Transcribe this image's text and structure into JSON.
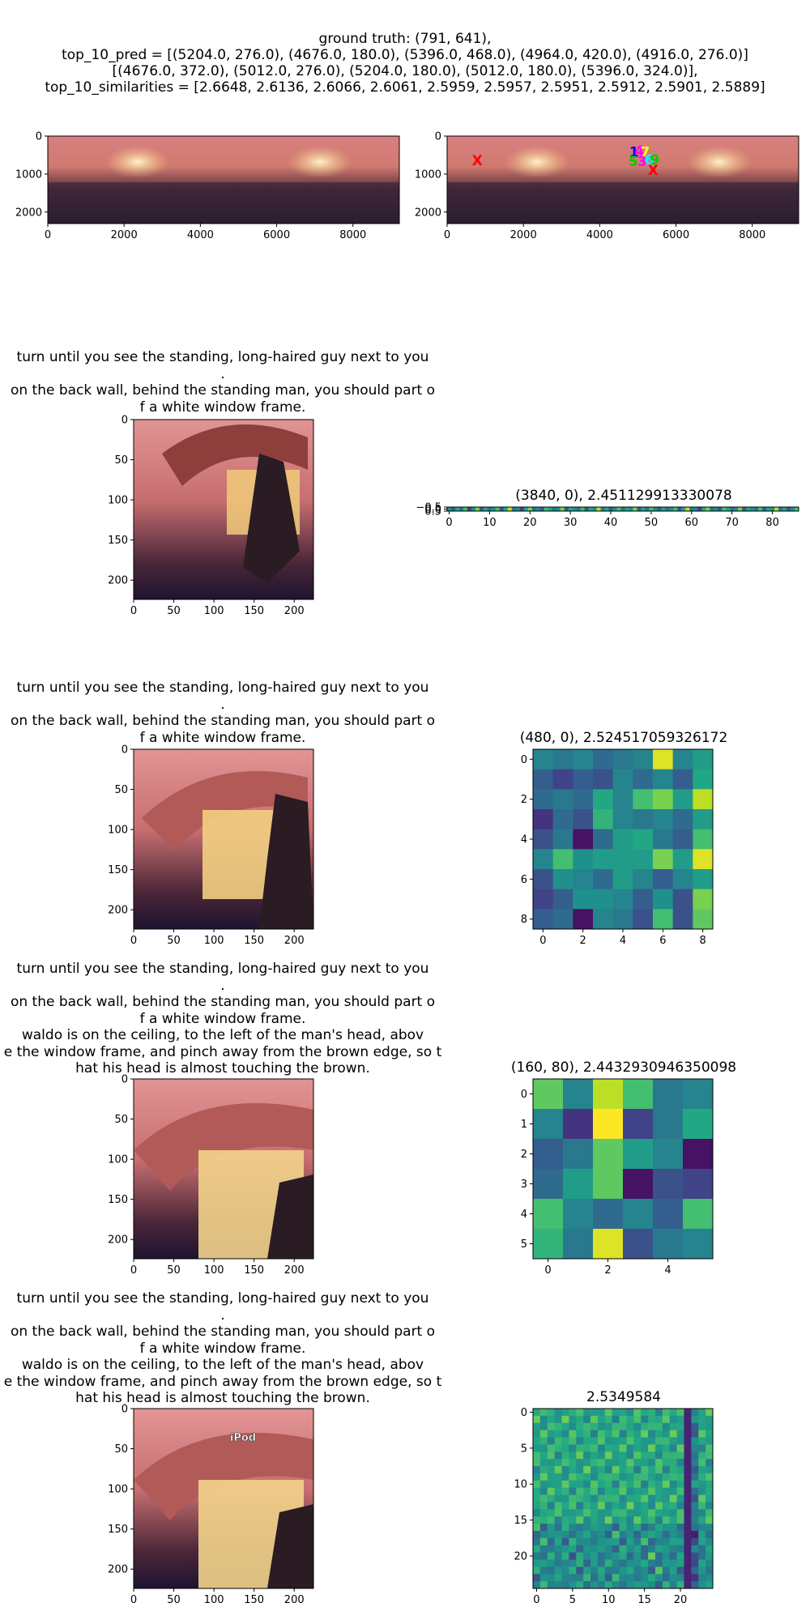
{
  "header": {
    "line1": "ground truth: (791, 641),",
    "line2": "top_10_pred = [(5204.0, 276.0), (4676.0, 180.0), (5396.0, 468.0), (4964.0, 420.0), (4916.0, 276.0)]",
    "line3": "[(4676.0, 372.0), (5012.0, 276.0), (5204.0, 180.0), (5012.0, 180.0), (5396.0, 324.0)],",
    "line4": "top_10_similarities = [2.6648, 2.6136, 2.6066, 2.6061, 2.5959, 2.5957, 2.5951, 2.5912, 2.5901, 2.5889]"
  },
  "captions": {
    "row2": [
      "turn until you see the standing, long-haired guy next to you",
      ".",
      "on the back wall, behind the standing man, you should part o",
      "f a white window frame."
    ],
    "row3": [
      "turn until you see the standing, long-haired guy next to you",
      ".",
      "on the back wall, behind the standing man, you should part o",
      "f a white window frame."
    ],
    "row4": [
      "turn until you see the standing, long-haired guy next to you",
      ".",
      "on the back wall, behind the standing man, you should part o",
      "f a white window frame.",
      "waldo is on the ceiling, to the left of the man's head, abov",
      "e the window frame, and pinch away from the brown edge, so t",
      "hat his head is almost touching the brown."
    ],
    "row5": [
      "turn until you see the standing, long-haired guy next to you",
      ".",
      "on the back wall, behind the standing man, you should part o",
      "f a white window frame.",
      "waldo is on the ceiling, to the left of the man's head, abov",
      "e the window frame, and pinch away from the brown edge, so t",
      "hat his head is almost touching the brown."
    ]
  },
  "panel_titles": {
    "row2_right": "(3840, 0), 2.451129913330078",
    "row3_right": "(480, 0), 2.524517059326172",
    "row4_right": "(160, 80), 2.4432930946350098",
    "row5_right": "2.5349584"
  },
  "image_overlay_text": "iPod",
  "chart_data": [
    {
      "type": "heatmap",
      "panel": "row1-left-panorama",
      "xticks": [
        "0",
        "2000",
        "4000",
        "6000",
        "8000"
      ],
      "yticks": [
        "0",
        "1000",
        "2000"
      ],
      "xlim": [
        0,
        9216
      ],
      "ylim": [
        2304,
        0
      ]
    },
    {
      "type": "scatter",
      "panel": "row1-right-panorama-with-predictions",
      "xticks": [
        "0",
        "2000",
        "4000",
        "6000",
        "8000"
      ],
      "yticks": [
        "0",
        "1000",
        "2000"
      ],
      "xlim": [
        0,
        9216
      ],
      "ylim": [
        2304,
        0
      ],
      "ground_truth_markers": [
        {
          "x": 791,
          "y": 641,
          "label": "X"
        },
        {
          "x": 5400,
          "y": 900,
          "label": "X"
        }
      ],
      "pred_labels": [
        {
          "label": "1",
          "x": 4900,
          "y": 420
        },
        {
          "label": "4",
          "x": 5040,
          "y": 380
        },
        {
          "label": "7",
          "x": 5190,
          "y": 420
        },
        {
          "label": "5",
          "x": 4880,
          "y": 660
        },
        {
          "label": "3",
          "x": 5110,
          "y": 660
        },
        {
          "label": "6",
          "x": 5300,
          "y": 620
        },
        {
          "label": "9",
          "x": 5440,
          "y": 620
        }
      ],
      "pred_colors": [
        "#0000ff",
        "#ff00ff",
        "#ffff00",
        "#00cc00",
        "#ff00ff",
        "#00ffff",
        "#00cc00"
      ],
      "gt_color": "#ff0000"
    },
    {
      "type": "heatmap",
      "panel": "row2-left-view",
      "xticks": [
        "0",
        "50",
        "100",
        "150",
        "200"
      ],
      "yticks": [
        "0",
        "50",
        "100",
        "150",
        "200"
      ],
      "xlim": [
        0,
        224
      ],
      "ylim": [
        224,
        0
      ]
    },
    {
      "type": "heatmap",
      "panel": "row2-right-strip",
      "title": "(3840, 0), 2.451129913330078",
      "xticks": [
        "0",
        "10",
        "20",
        "30",
        "40",
        "50",
        "60",
        "70",
        "80"
      ],
      "yticks": [
        "−0.5",
        "0.0",
        "0.5"
      ],
      "xlim": [
        -0.5,
        86.5
      ],
      "ylim": [
        0.5,
        -0.5
      ],
      "columns": 87,
      "values": [
        0.5,
        0.3,
        0.6,
        0.4,
        0.7,
        0.2,
        0.5,
        0.8,
        0.3,
        0.6,
        0.4,
        0.5,
        0.7,
        0.3,
        0.6,
        0.9,
        0.4,
        0.5,
        0.2,
        0.6,
        0.8,
        0.4,
        0.5,
        0.3,
        0.7,
        0.6,
        0.4,
        0.5,
        0.8,
        0.3,
        0.6,
        0.5,
        0.4,
        0.7,
        0.3,
        0.6,
        0.5,
        0.9,
        0.4,
        0.6,
        0.3,
        0.5,
        0.7,
        0.4,
        0.6,
        0.5,
        0.8,
        0.3,
        0.6,
        0.4,
        0.7,
        0.5,
        0.3,
        0.6,
        0.4,
        0.5,
        0.7,
        0.3,
        0.6,
        0.9,
        0.4,
        0.5,
        0.2,
        0.6,
        0.8,
        0.4,
        0.5,
        0.3,
        0.7,
        0.6,
        0.4,
        0.5,
        0.8,
        0.3,
        0.6,
        0.5,
        0.4,
        0.7,
        0.3,
        0.6,
        0.5,
        0.9,
        0.4,
        0.6,
        0.3,
        0.5,
        0.7
      ]
    },
    {
      "type": "heatmap",
      "panel": "row3-left-view",
      "xticks": [
        "0",
        "50",
        "100",
        "150",
        "200"
      ],
      "yticks": [
        "0",
        "50",
        "100",
        "150",
        "200"
      ],
      "xlim": [
        0,
        224
      ],
      "ylim": [
        224,
        0
      ]
    },
    {
      "type": "heatmap",
      "panel": "row3-right-grid",
      "title": "(480, 0), 2.524517059326172",
      "xticks": [
        "0",
        "2",
        "4",
        "6",
        "8"
      ],
      "yticks": [
        "0",
        "2",
        "4",
        "6",
        "8"
      ],
      "xlim": [
        -0.5,
        8.5
      ],
      "ylim": [
        8.5,
        -0.5
      ],
      "matrix": [
        [
          0.45,
          0.4,
          0.45,
          0.35,
          0.4,
          0.45,
          0.95,
          0.45,
          0.55
        ],
        [
          0.3,
          0.2,
          0.3,
          0.25,
          0.45,
          0.35,
          0.45,
          0.3,
          0.6
        ],
        [
          0.35,
          0.4,
          0.35,
          0.6,
          0.45,
          0.7,
          0.8,
          0.55,
          0.9
        ],
        [
          0.15,
          0.35,
          0.25,
          0.65,
          0.45,
          0.4,
          0.45,
          0.35,
          0.55
        ],
        [
          0.25,
          0.4,
          0.05,
          0.35,
          0.55,
          0.6,
          0.4,
          0.3,
          0.7
        ],
        [
          0.45,
          0.7,
          0.5,
          0.55,
          0.55,
          0.55,
          0.8,
          0.55,
          0.95
        ],
        [
          0.25,
          0.5,
          0.45,
          0.35,
          0.55,
          0.45,
          0.3,
          0.45,
          0.55
        ],
        [
          0.2,
          0.3,
          0.5,
          0.5,
          0.45,
          0.3,
          0.5,
          0.25,
          0.8
        ],
        [
          0.3,
          0.35,
          0.05,
          0.45,
          0.4,
          0.25,
          0.7,
          0.25,
          0.75
        ]
      ]
    },
    {
      "type": "heatmap",
      "panel": "row4-left-view",
      "xticks": [
        "0",
        "50",
        "100",
        "150",
        "200"
      ],
      "yticks": [
        "0",
        "50",
        "100",
        "150",
        "200"
      ],
      "xlim": [
        0,
        224
      ],
      "ylim": [
        224,
        0
      ]
    },
    {
      "type": "heatmap",
      "panel": "row4-right-grid",
      "title": "(160, 80), 2.4432930946350098",
      "xticks": [
        "0",
        "2",
        "4"
      ],
      "yticks": [
        "0",
        "1",
        "2",
        "3",
        "4",
        "5"
      ],
      "xlim": [
        -0.5,
        5.5
      ],
      "ylim": [
        5.5,
        -0.5
      ],
      "matrix": [
        [
          0.75,
          0.45,
          0.9,
          0.7,
          0.4,
          0.45
        ],
        [
          0.45,
          0.15,
          1.0,
          0.2,
          0.4,
          0.6
        ],
        [
          0.3,
          0.4,
          0.75,
          0.55,
          0.45,
          0.05
        ],
        [
          0.35,
          0.55,
          0.75,
          0.05,
          0.25,
          0.2
        ],
        [
          0.7,
          0.45,
          0.35,
          0.45,
          0.3,
          0.7
        ],
        [
          0.65,
          0.4,
          0.95,
          0.25,
          0.4,
          0.45
        ]
      ]
    },
    {
      "type": "heatmap",
      "panel": "row5-left-view",
      "xticks": [
        "0",
        "50",
        "100",
        "150",
        "200"
      ],
      "yticks": [
        "0",
        "50",
        "100",
        "150",
        "200"
      ],
      "xlim": [
        0,
        224
      ],
      "ylim": [
        224,
        0
      ]
    },
    {
      "type": "heatmap",
      "panel": "row5-right-grid",
      "title": "2.5349584",
      "xticks": [
        "0",
        "5",
        "10",
        "15",
        "20"
      ],
      "yticks": [
        "0",
        "5",
        "10",
        "15",
        "20"
      ],
      "xlim": [
        -0.5,
        24.5
      ],
      "ylim": [
        24.5,
        -0.5
      ],
      "size": 25
    }
  ]
}
